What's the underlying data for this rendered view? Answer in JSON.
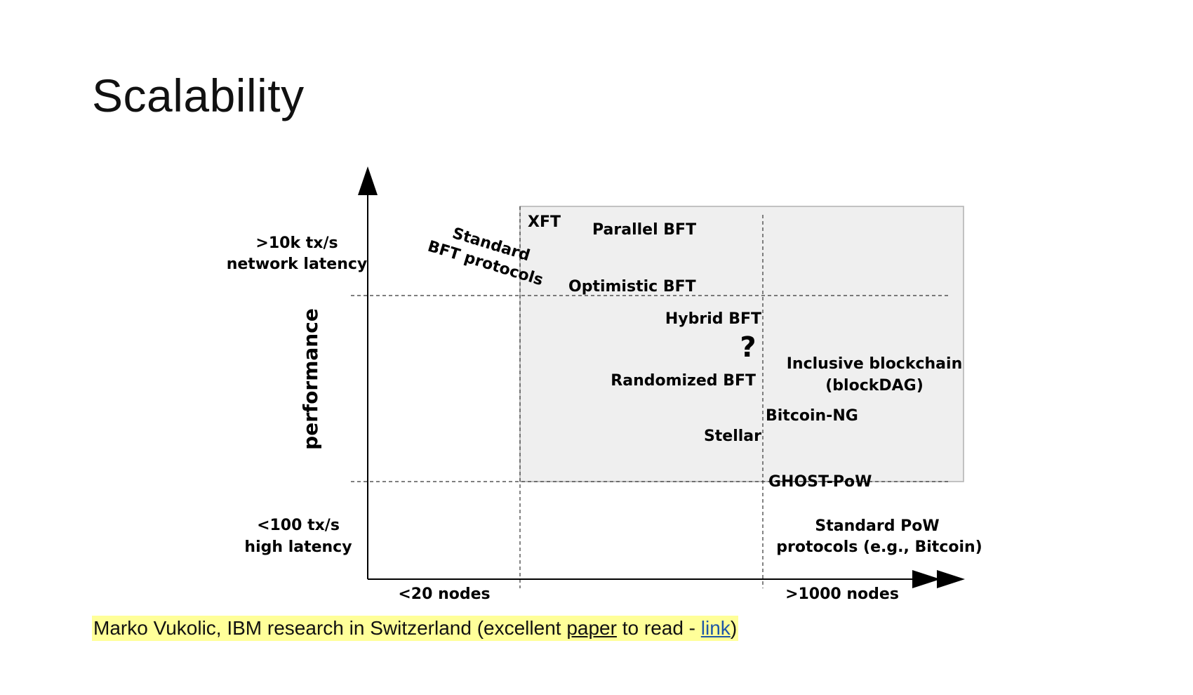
{
  "slide": {
    "title": "Scalability"
  },
  "diagram": {
    "y_axis_label": "performance",
    "y_top_line1": ">10k tx/s",
    "y_top_line2": "network latency",
    "y_bottom_line1": "<100 tx/s",
    "y_bottom_line2": "high latency",
    "x_left_label": "<20 nodes",
    "x_right_label": ">1000 nodes",
    "standard_bft_line1": "Standard",
    "standard_bft_line2": "BFT protocols",
    "xft": "XFT",
    "parallel_bft": "Parallel BFT",
    "optimistic_bft": "Optimistic BFT",
    "hybrid_bft": "Hybrid BFT",
    "question_mark": "?",
    "randomized_bft": "Randomized BFT",
    "inclusive_line1": "Inclusive blockchain",
    "inclusive_line2": "(blockDAG)",
    "bitcoin_ng": "Bitcoin-NG",
    "stellar": "Stellar",
    "ghost_pow": "GHOST-PoW",
    "standard_pow_line1": "Standard PoW",
    "standard_pow_line2": "protocols (e.g., Bitcoin)",
    "colors": {
      "shaded_region": "#efefef",
      "region_border": "#b0b0b0",
      "axis": "#000000"
    }
  },
  "caption": {
    "prefix": "Marko Vukolic, IBM research in Switzerland (excellent ",
    "paper_link": "paper",
    "middle": " to read - ",
    "link": "link",
    "suffix": ")",
    "highlight_color": "#ffff99",
    "link_color": "#1f57a6"
  }
}
